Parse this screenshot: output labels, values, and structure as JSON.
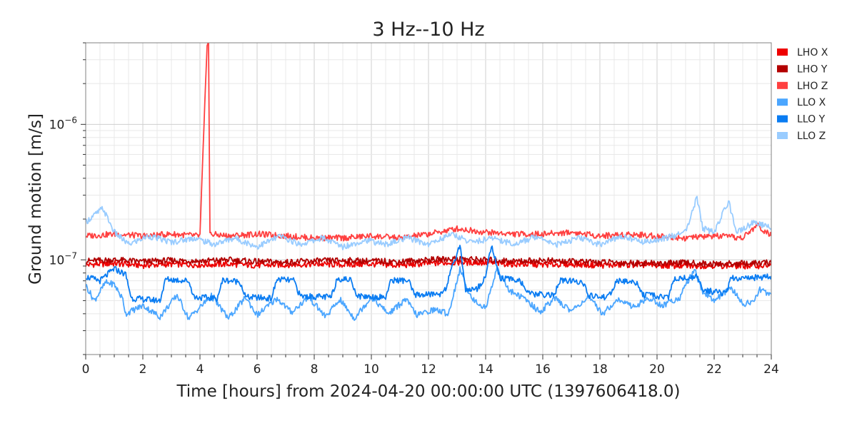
{
  "chart_data": {
    "type": "line",
    "title": "3 Hz--10 Hz",
    "xlabel": "Time [hours] from 2024-04-20 00:00:00 UTC (1397606418.0)",
    "ylabel": "Ground motion [m/s]",
    "xlim": [
      0,
      24
    ],
    "ylim": [
      2e-08,
      4e-06
    ],
    "yscale": "log",
    "grid": true,
    "legend_position": "right",
    "x_ticks": [
      0,
      2,
      4,
      6,
      8,
      10,
      12,
      14,
      16,
      18,
      20,
      22,
      24
    ],
    "y_ticks": [
      {
        "value": 1e-07,
        "base": "10",
        "exp": "−7"
      },
      {
        "value": 1e-06,
        "base": "10",
        "exp": "−6"
      }
    ],
    "series": [
      {
        "name": "LHO X",
        "color": "#ee0000",
        "x": [
          0,
          1,
          2,
          3,
          4,
          5,
          6,
          7,
          8,
          9,
          10,
          11,
          12,
          13,
          14,
          15,
          16,
          17,
          18,
          19,
          20,
          21,
          22,
          23,
          24
        ],
        "y": [
          9.2e-08,
          9.4e-08,
          9.1e-08,
          9.3e-08,
          9.2e-08,
          9.3e-08,
          9.1e-08,
          9.2e-08,
          9.3e-08,
          9.2e-08,
          9.3e-08,
          9.1e-08,
          9.4e-08,
          9.6e-08,
          9.5e-08,
          9.3e-08,
          9.2e-08,
          9.3e-08,
          9.1e-08,
          9.2e-08,
          9.1e-08,
          9e-08,
          9.1e-08,
          9e-08,
          9.1e-08
        ]
      },
      {
        "name": "LHO Y",
        "color": "#b30000",
        "x": [
          0,
          1,
          2,
          3,
          4,
          5,
          6,
          7,
          8,
          9,
          10,
          11,
          12,
          13,
          14,
          15,
          16,
          17,
          18,
          19,
          20,
          21,
          22,
          23,
          24
        ],
        "y": [
          9.8e-08,
          1e-07,
          9.7e-08,
          9.9e-08,
          9.8e-08,
          1e-07,
          9.7e-08,
          9.6e-08,
          9.8e-08,
          9.9e-08,
          9.8e-08,
          9.7e-08,
          1e-07,
          1.02e-07,
          1e-07,
          9.8e-08,
          9.9e-08,
          9.7e-08,
          9.6e-08,
          9.5e-08,
          9.4e-08,
          9.5e-08,
          9.3e-08,
          9.4e-08,
          9.5e-08
        ]
      },
      {
        "name": "LHO Z",
        "color": "#ff4040",
        "x": [
          0,
          1,
          2,
          3,
          4,
          4.25,
          4.3,
          4.35,
          5,
          6,
          7,
          8,
          9,
          10,
          11,
          12,
          13,
          14,
          15,
          16,
          17,
          18,
          19,
          20,
          21,
          22,
          23,
          23.5,
          24
        ],
        "y": [
          1.5e-07,
          1.55e-07,
          1.5e-07,
          1.55e-07,
          1.5e-07,
          4e-06,
          4e-06,
          1.55e-07,
          1.5e-07,
          1.55e-07,
          1.5e-07,
          1.45e-07,
          1.45e-07,
          1.5e-07,
          1.45e-07,
          1.55e-07,
          1.7e-07,
          1.6e-07,
          1.55e-07,
          1.55e-07,
          1.6e-07,
          1.5e-07,
          1.55e-07,
          1.5e-07,
          1.45e-07,
          1.5e-07,
          1.45e-07,
          1.8e-07,
          1.5e-07
        ]
      },
      {
        "name": "LLO X",
        "color": "#4ba6ff",
        "x": [
          0,
          0.3,
          0.7,
          1.0,
          1.3,
          1.4,
          2.0,
          2.6,
          3.2,
          3.6,
          4.4,
          5.0,
          5.6,
          6.0,
          6.7,
          7.2,
          7.8,
          8.4,
          8.9,
          9.4,
          10.0,
          10.6,
          11.2,
          11.6,
          12.2,
          12.7,
          13.1,
          13.5,
          14.0,
          14.4,
          14.8,
          15.4,
          15.9,
          16.4,
          17.0,
          17.6,
          18.1,
          18.6,
          19.2,
          19.7,
          20.2,
          20.8,
          21.3,
          21.6,
          22.0,
          22.6,
          23.0,
          23.4,
          23.6,
          24
        ],
        "y": [
          6.5e-08,
          5e-08,
          6.8e-08,
          6.6e-08,
          5.1e-08,
          4e-08,
          4.6e-08,
          3.8e-08,
          5.5e-08,
          3.7e-08,
          5.4e-08,
          3.7e-08,
          5.3e-08,
          3.9e-08,
          5.2e-08,
          4.1e-08,
          5.3e-08,
          3.8e-08,
          5.1e-08,
          3.7e-08,
          5.3e-08,
          4e-08,
          5.1e-08,
          3.9e-08,
          4.3e-08,
          4e-08,
          8.5e-08,
          5.2e-08,
          4.4e-08,
          8.8e-08,
          6e-08,
          5.1e-08,
          4.1e-08,
          5.2e-08,
          4.2e-08,
          5.3e-08,
          4e-08,
          5.1e-08,
          4.5e-08,
          5.2e-08,
          4.6e-08,
          5.3e-08,
          8.6e-08,
          5.8e-08,
          5e-08,
          6.2e-08,
          4.7e-08,
          5e-08,
          6e-08,
          5.6e-08
        ]
      },
      {
        "name": "LLO Y",
        "color": "#0a7cf2",
        "x": [
          0,
          0.5,
          1.0,
          1.4,
          1.6,
          2.6,
          2.8,
          3.6,
          3.8,
          4.6,
          4.8,
          5.4,
          5.6,
          6.5,
          6.7,
          7.3,
          7.5,
          8.6,
          8.8,
          9.3,
          9.5,
          10.5,
          10.7,
          11.3,
          11.5,
          12.4,
          12.6,
          13.1,
          13.3,
          13.7,
          14.0,
          14.2,
          14.5,
          15.2,
          15.5,
          16.4,
          16.6,
          17.4,
          17.6,
          18.3,
          18.6,
          19.3,
          19.5,
          20.4,
          20.6,
          21.4,
          21.6,
          22.4,
          22.6,
          23.5,
          24
        ],
        "y": [
          7.5e-08,
          7e-08,
          8.6e-08,
          7.8e-08,
          5.2e-08,
          5e-08,
          7.2e-08,
          7e-08,
          5.3e-08,
          5.2e-08,
          7.1e-08,
          6.9e-08,
          5.3e-08,
          5.2e-08,
          7.2e-08,
          7e-08,
          5.4e-08,
          5.3e-08,
          7.3e-08,
          7.1e-08,
          5.4e-08,
          5.3e-08,
          7.1e-08,
          7e-08,
          5.5e-08,
          5.6e-08,
          6.2e-08,
          1.3e-07,
          6e-08,
          6.1e-08,
          7.5e-08,
          1.3e-07,
          7.3e-08,
          7.1e-08,
          5.6e-08,
          5.5e-08,
          7e-08,
          6.9e-08,
          5.4e-08,
          5.3e-08,
          7e-08,
          6.8e-08,
          5.5e-08,
          5.3e-08,
          7.2e-08,
          7.5e-08,
          6e-08,
          5.6e-08,
          7.3e-08,
          7.4e-08,
          7.6e-08
        ]
      },
      {
        "name": "LLO Z",
        "color": "#99ccff",
        "x": [
          0,
          0.6,
          1.0,
          1.5,
          2.2,
          3.0,
          3.8,
          4.5,
          5.2,
          6.0,
          6.8,
          7.5,
          8.3,
          9.0,
          9.8,
          10.5,
          11.3,
          12.0,
          12.8,
          13.5,
          14.3,
          15.0,
          15.8,
          16.5,
          17.3,
          18.0,
          18.8,
          19.5,
          20.3,
          21.0,
          21.4,
          21.6,
          22.0,
          22.5,
          22.8,
          23.4,
          24
        ],
        "y": [
          1.9e-07,
          2.4e-07,
          1.6e-07,
          1.3e-07,
          1.5e-07,
          1.35e-07,
          1.45e-07,
          1.3e-07,
          1.45e-07,
          1.25e-07,
          1.5e-07,
          1.3e-07,
          1.45e-07,
          1.25e-07,
          1.4e-07,
          1.3e-07,
          1.45e-07,
          1.3e-07,
          1.55e-07,
          1.35e-07,
          1.45e-07,
          1.3e-07,
          1.5e-07,
          1.3e-07,
          1.45e-07,
          1.3e-07,
          1.5e-07,
          1.35e-07,
          1.45e-07,
          1.6e-07,
          2.9e-07,
          1.7e-07,
          1.6e-07,
          2.7e-07,
          1.6e-07,
          1.9e-07,
          1.7e-07
        ]
      }
    ]
  }
}
